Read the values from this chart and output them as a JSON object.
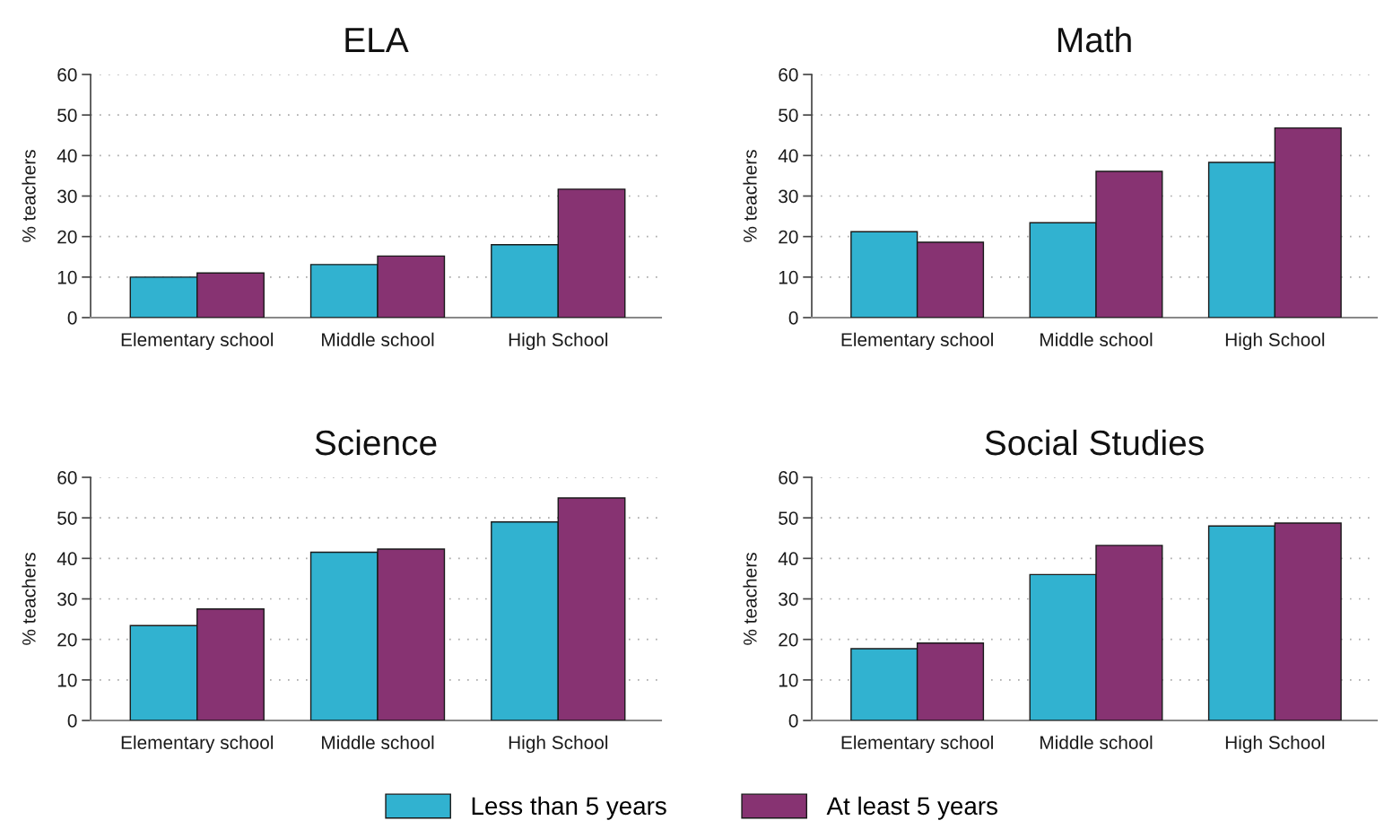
{
  "chart_data": [
    {
      "type": "bar",
      "title": "ELA",
      "ylabel": "% teachers",
      "categories": [
        "Elementary school",
        "Middle school",
        "High School"
      ],
      "ylim": [
        0,
        60
      ],
      "yticks": [
        0,
        10,
        20,
        30,
        40,
        50,
        60
      ],
      "grid": "y",
      "legend": "bottom",
      "series": [
        {
          "name": "Less than 5 years",
          "color": "#31b2d0",
          "values": [
            10,
            13.1,
            18
          ]
        },
        {
          "name": "At least 5 years",
          "color": "#873372",
          "values": [
            11,
            15.2,
            31.7
          ]
        }
      ]
    },
    {
      "type": "bar",
      "title": "Math",
      "ylabel": "% teachers",
      "categories": [
        "Elementary school",
        "Middle school",
        "High School"
      ],
      "ylim": [
        0,
        60
      ],
      "yticks": [
        0,
        10,
        20,
        30,
        40,
        50,
        60
      ],
      "grid": "y",
      "series": [
        {
          "color": "#31b2d0",
          "values": [
            21.2,
            23.4,
            38.3
          ]
        },
        {
          "color": "#873372",
          "values": [
            18.6,
            36.1,
            46.8
          ]
        }
      ]
    },
    {
      "type": "bar",
      "title": "Science",
      "ylabel": "% teachers",
      "categories": [
        "Elementary school",
        "Middle school",
        "High School"
      ],
      "ylim": [
        0,
        60
      ],
      "yticks": [
        0,
        10,
        20,
        30,
        40,
        50,
        60
      ],
      "grid": "y",
      "series": [
        {
          "color": "#31b2d0",
          "values": [
            23.4,
            41.5,
            49
          ]
        },
        {
          "color": "#873372",
          "values": [
            27.5,
            42.3,
            54.9
          ]
        }
      ]
    },
    {
      "type": "bar",
      "title": "Social Studies",
      "ylabel": "% teachers",
      "categories": [
        "Elementary school",
        "Middle school",
        "High School"
      ],
      "ylim": [
        0,
        60
      ],
      "yticks": [
        0,
        10,
        20,
        30,
        40,
        50,
        60
      ],
      "grid": "y",
      "series": [
        {
          "color": "#31b2d0",
          "values": [
            17.7,
            36,
            48
          ]
        },
        {
          "color": "#873372",
          "values": [
            19.1,
            43.2,
            48.7
          ]
        }
      ]
    }
  ]
}
